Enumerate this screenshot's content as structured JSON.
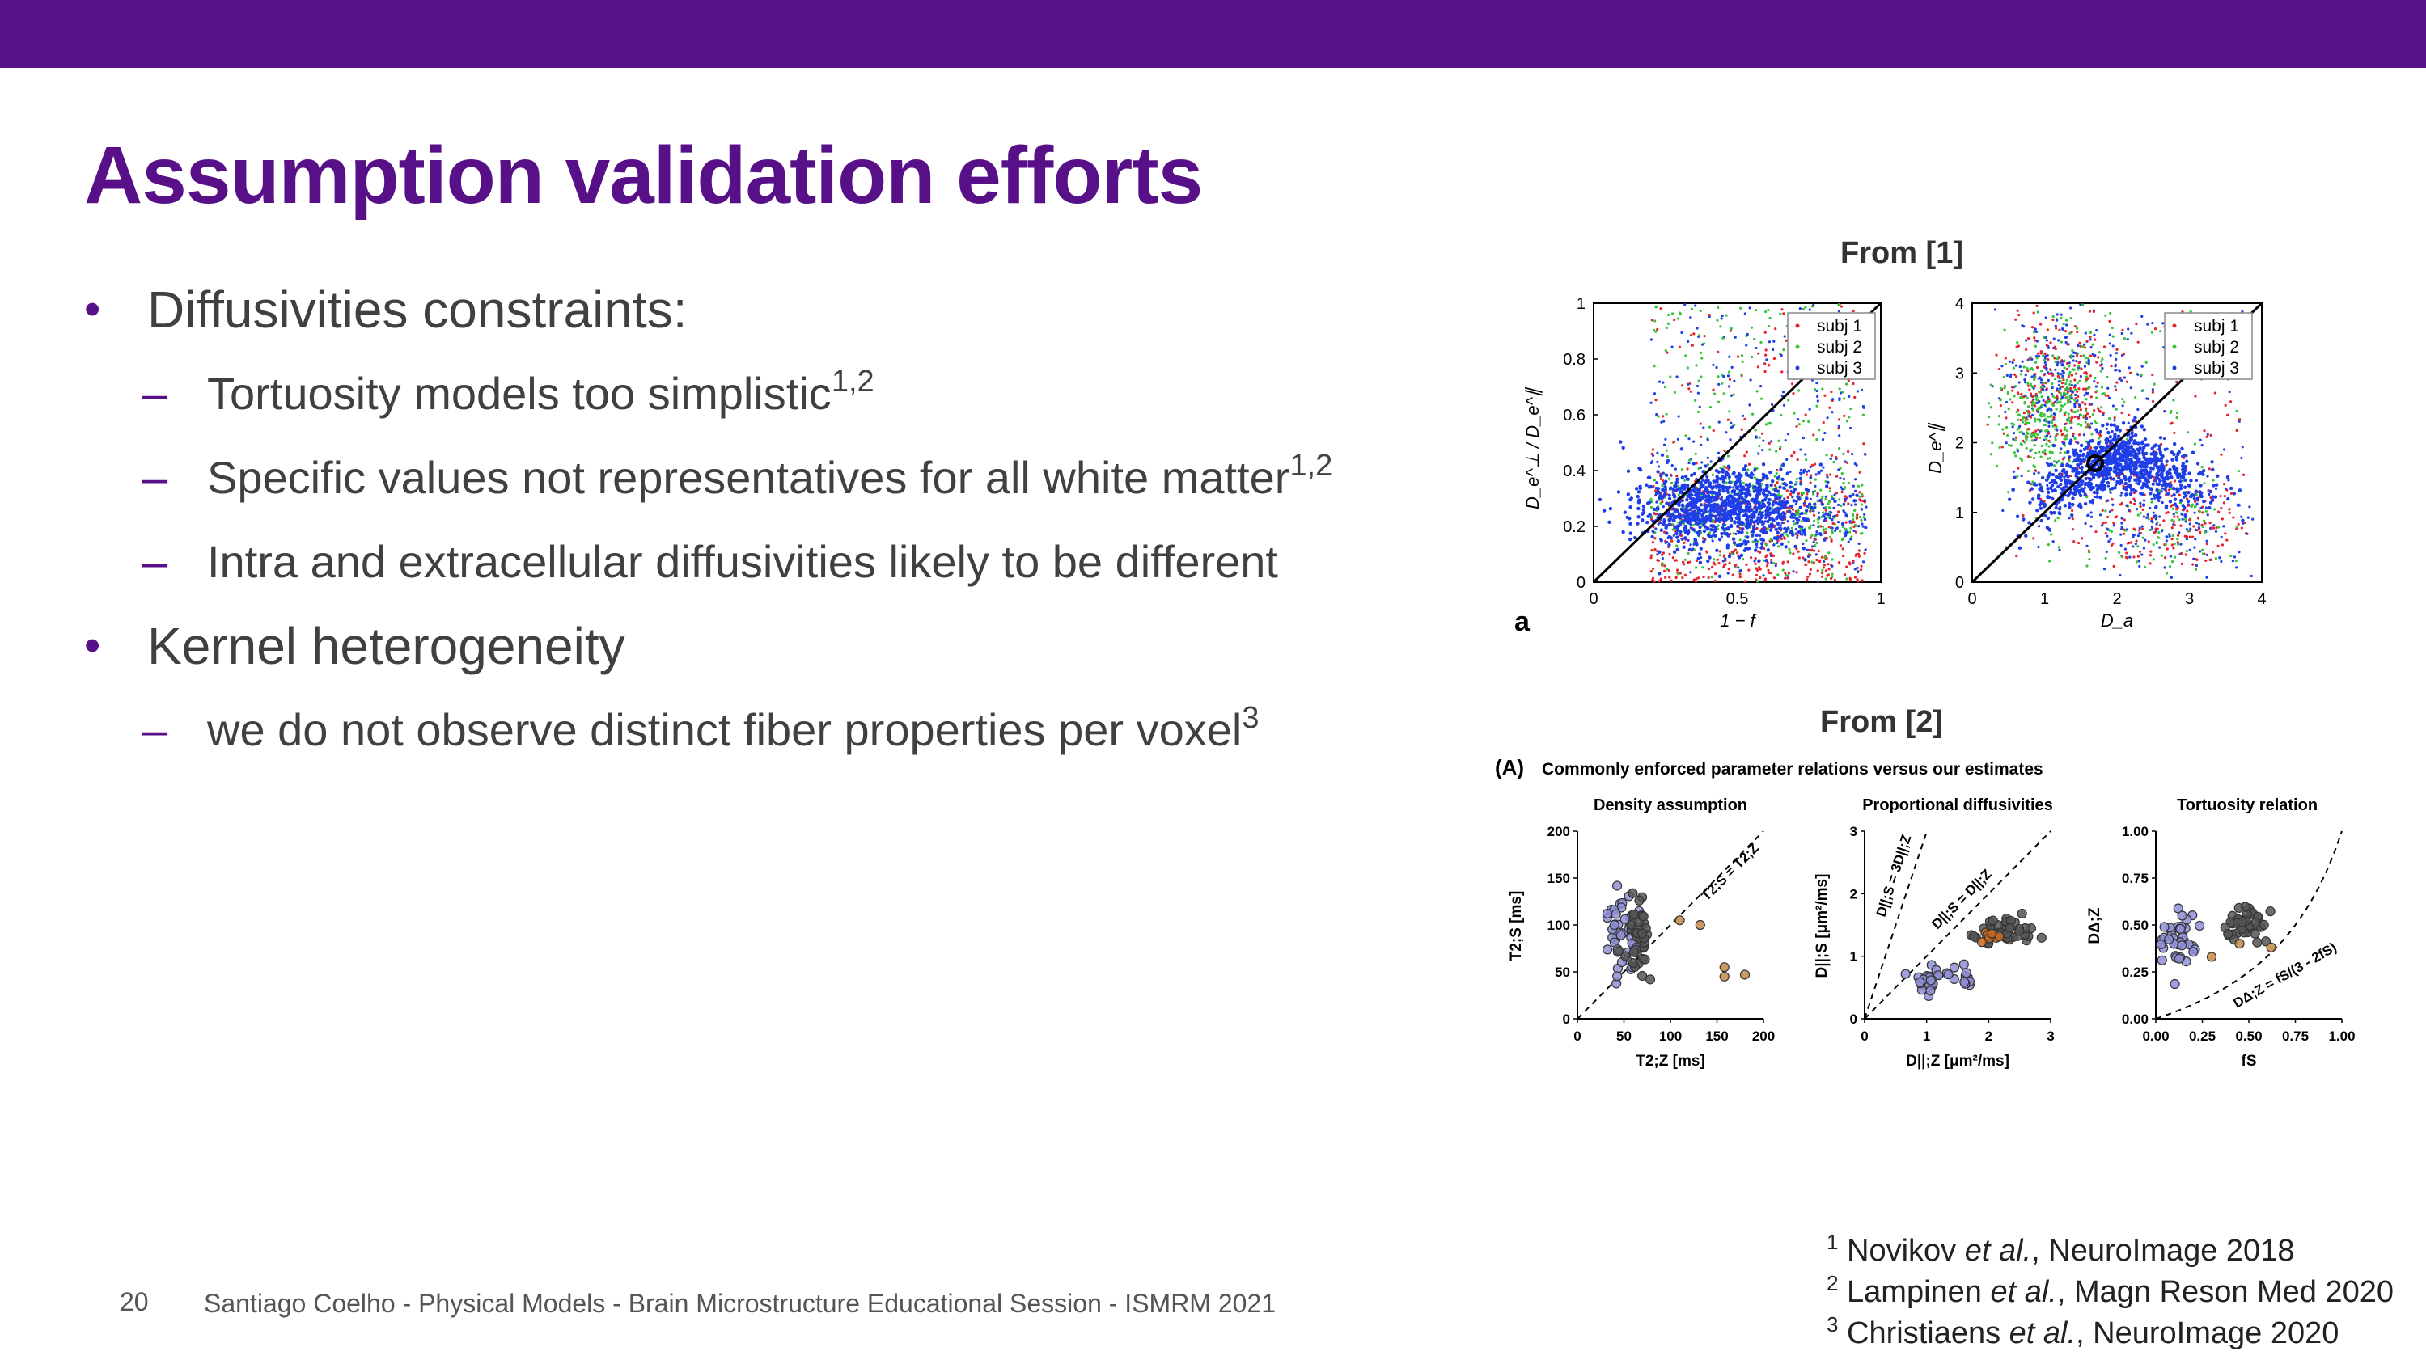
{
  "slide": {
    "title": "Assumption validation efforts",
    "page_number": "20",
    "footer": "Santiago Coelho - Physical Models - Brain Microstructure Educational Session - ISMRM 2021"
  },
  "bullets": [
    {
      "text": "Diffusivities constraints:",
      "sub": [
        {
          "text": "Tortuosity models too simplistic",
          "sup": "1,2"
        },
        {
          "text": "Specific values not representatives for all white matter",
          "sup": "1,2"
        },
        {
          "text": "Intra and extracellular diffusivities likely to be different",
          "sup": ""
        }
      ]
    },
    {
      "text": "Kernel heterogeneity",
      "sub": [
        {
          "text": "we do not observe distinct fiber properties per voxel",
          "sup": "3"
        }
      ]
    }
  ],
  "references": [
    {
      "num": "1",
      "author": "Novikov ",
      "etal": "et al.",
      "rest": ", NeuroImage 2018"
    },
    {
      "num": "2",
      "author": "Lampinen ",
      "etal": "et al.",
      "rest": ", Magn Reson Med 2020"
    },
    {
      "num": "3",
      "author": "Christiaens ",
      "etal": "et al.",
      "rest": ", NeuroImage 2020"
    }
  ],
  "figure1": {
    "label": "From [1]",
    "panel_letter": "a",
    "legend": [
      "subj 1",
      "subj 2",
      "subj 3"
    ],
    "colors": {
      "subj1": "#e8232b",
      "subj2": "#35c43a",
      "subj3": "#1f3ee8"
    },
    "left": {
      "ylabel": "D_e^⊥ / D_e^∥",
      "xlabel": "1 − f",
      "xticks": [
        "0",
        "0.5",
        "1"
      ],
      "yticks": [
        "0",
        "0.2",
        "0.4",
        "0.6",
        "0.8",
        "1"
      ]
    },
    "right": {
      "ylabel": "D_e^∥",
      "xlabel": "D_a",
      "xticks": [
        "0",
        "1",
        "2",
        "3",
        "4"
      ],
      "yticks": [
        "0",
        "1",
        "2",
        "3",
        "4"
      ]
    }
  },
  "figure2": {
    "label": "From [2]",
    "panel_tag": "(A)",
    "heading": "Commonly enforced parameter relations versus our estimates",
    "panels": [
      {
        "title": "Density assumption",
        "ylabel": "T2;S [ms]",
        "xlabel": "T2;Z [ms]",
        "xticks": [
          "0",
          "50",
          "100",
          "150",
          "200"
        ],
        "yticks": [
          "0",
          "50",
          "100",
          "150",
          "200"
        ],
        "line_label": "T2;S = T2;Z"
      },
      {
        "title": "Proportional diffusivities",
        "ylabel": "D||;S [μm²/ms]",
        "xlabel": "D||;Z [μm²/ms]",
        "xticks": [
          "0",
          "1",
          "2",
          "3"
        ],
        "yticks": [
          "0",
          "1",
          "2",
          "3"
        ],
        "line_label_1": "D||;S = 3D||;Z",
        "line_label_2": "D||;S = D||;Z"
      },
      {
        "title": "Tortuosity relation",
        "ylabel": "DΔ;Z",
        "xlabel": "fS",
        "xticks": [
          "0.00",
          "0.25",
          "0.50",
          "0.75",
          "1.00"
        ],
        "yticks": [
          "0.00",
          "0.25",
          "0.50",
          "0.75",
          "1.00"
        ],
        "line_label": "DΔ;Z = fS/(3 - 2fS)"
      }
    ],
    "colors": {
      "group1": "#8e8fd6",
      "group2": "#555555",
      "group3": "#c48a45"
    }
  }
}
